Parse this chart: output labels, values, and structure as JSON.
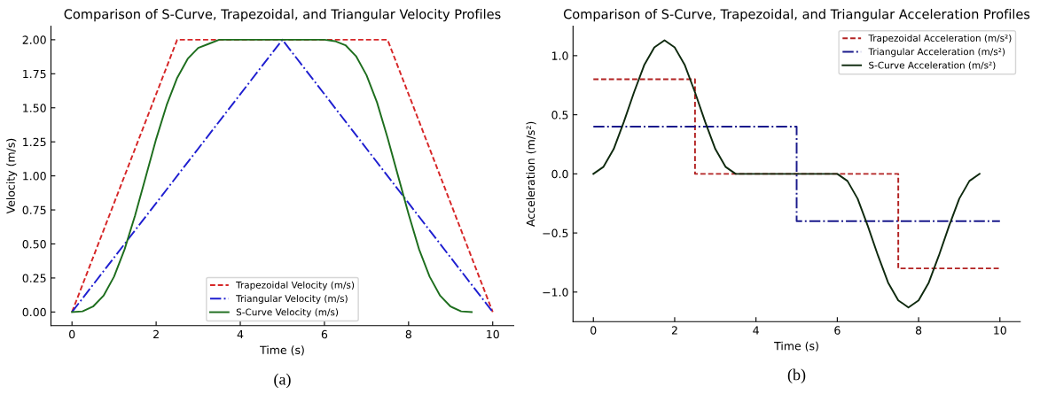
{
  "chart_data": [
    {
      "type": "line",
      "title": "Comparison of S-Curve, Trapezoidal, and Triangular Velocity Profiles",
      "xlabel": "Time (s)",
      "ylabel": "Velocity (m/s)",
      "xlim": [
        -0.5,
        10.5
      ],
      "ylim": [
        -0.1,
        2.1
      ],
      "xticks": [
        0,
        2,
        4,
        6,
        8,
        10
      ],
      "yticks": [
        {
          "value": 0,
          "label": "0.00"
        },
        {
          "value": 0.25,
          "label": "0.25"
        },
        {
          "value": 0.5,
          "label": "0.50"
        },
        {
          "value": 0.75,
          "label": "0.75"
        },
        {
          "value": 1,
          "label": "1.00"
        },
        {
          "value": 1.25,
          "label": "1.25"
        },
        {
          "value": 1.5,
          "label": "1.50"
        },
        {
          "value": 1.75,
          "label": "1.75"
        },
        {
          "value": 2,
          "label": "2.00"
        }
      ],
      "grid": false,
      "legend": "bottom",
      "annotations": [
        "(a)"
      ],
      "series": [
        {
          "name": "Trapezoidal Velocity (m/s)",
          "color": "#d62728",
          "line_style": "dashed",
          "x": [
            0,
            2.5,
            7.5,
            10
          ],
          "values": [
            0,
            2,
            2,
            0
          ]
        },
        {
          "name": "Triangular Velocity (m/s)",
          "color": "#1f1fd0",
          "line_style": "dashdot",
          "x": [
            0,
            5,
            10
          ],
          "values": [
            0,
            2,
            0
          ]
        },
        {
          "name": "S-Curve Velocity (m/s)",
          "color": "#1e6e1e",
          "line_style": "solid",
          "x": [
            0,
            0.25,
            0.5,
            0.75,
            1.0,
            1.25,
            1.5,
            1.75,
            2.0,
            2.25,
            2.5,
            2.75,
            3.0,
            3.25,
            3.5,
            6.0,
            6.25,
            6.5,
            6.75,
            7.0,
            7.25,
            7.5,
            7.75,
            8.0,
            8.25,
            8.5,
            8.75,
            9.0,
            9.25,
            9.5
          ],
          "values": [
            0,
            0.005,
            0.04,
            0.12,
            0.26,
            0.46,
            0.71,
            0.99,
            1.27,
            1.52,
            1.72,
            1.86,
            1.94,
            1.97,
            2.0,
            2.0,
            1.99,
            1.96,
            1.88,
            1.74,
            1.54,
            1.28,
            1.0,
            0.72,
            0.46,
            0.26,
            0.12,
            0.04,
            0.005,
            0
          ]
        }
      ]
    },
    {
      "type": "line",
      "title": "Comparison of S-Curve, Trapezoidal, and Triangular Acceleration Profiles",
      "xlabel": "Time (s)",
      "ylabel": "Acceleration (m/s²)",
      "xlim": [
        -0.5,
        10.5
      ],
      "ylim": [
        -1.25,
        1.25
      ],
      "xticks": [
        0,
        2,
        4,
        6,
        8,
        10
      ],
      "yticks": [
        {
          "value": -1,
          "label": "−1.0"
        },
        {
          "value": -0.5,
          "label": "−0.5"
        },
        {
          "value": 0,
          "label": "0.0"
        },
        {
          "value": 0.5,
          "label": "0.5"
        },
        {
          "value": 1,
          "label": "1.0"
        }
      ],
      "grid": false,
      "legend": "top right",
      "annotations": [
        "(b)"
      ],
      "series": [
        {
          "name": "Trapezoidal Acceleration (m/s²)",
          "type": "step",
          "color": "#b22222",
          "line_style": "dashed",
          "x": [
            0,
            2.5,
            7.5,
            10
          ],
          "values": [
            0.8,
            0,
            -0.8,
            -0.8
          ]
        },
        {
          "name": "Triangular Acceleration (m/s²)",
          "type": "step",
          "color": "#1a1a8c",
          "line_style": "dashdot",
          "x": [
            0,
            5,
            10
          ],
          "values": [
            0.4,
            -0.4,
            -0.4
          ]
        },
        {
          "name": "S-Curve Acceleration (m/s²)",
          "type": "line",
          "color": "#0f2a0f",
          "line_style": "solid",
          "x": [
            0,
            0.25,
            0.5,
            0.75,
            1.0,
            1.25,
            1.5,
            1.75,
            2.0,
            2.25,
            2.5,
            2.75,
            3.0,
            3.25,
            3.5,
            6.0,
            6.25,
            6.5,
            6.75,
            7.0,
            7.25,
            7.5,
            7.75,
            8.0,
            8.25,
            8.5,
            8.75,
            9.0,
            9.25,
            9.5
          ],
          "values": [
            0,
            0.06,
            0.21,
            0.44,
            0.69,
            0.92,
            1.07,
            1.13,
            1.07,
            0.92,
            0.69,
            0.44,
            0.21,
            0.06,
            0,
            0,
            -0.06,
            -0.21,
            -0.44,
            -0.69,
            -0.92,
            -1.07,
            -1.13,
            -1.07,
            -0.92,
            -0.69,
            -0.44,
            -0.21,
            -0.06,
            0
          ]
        }
      ]
    }
  ]
}
